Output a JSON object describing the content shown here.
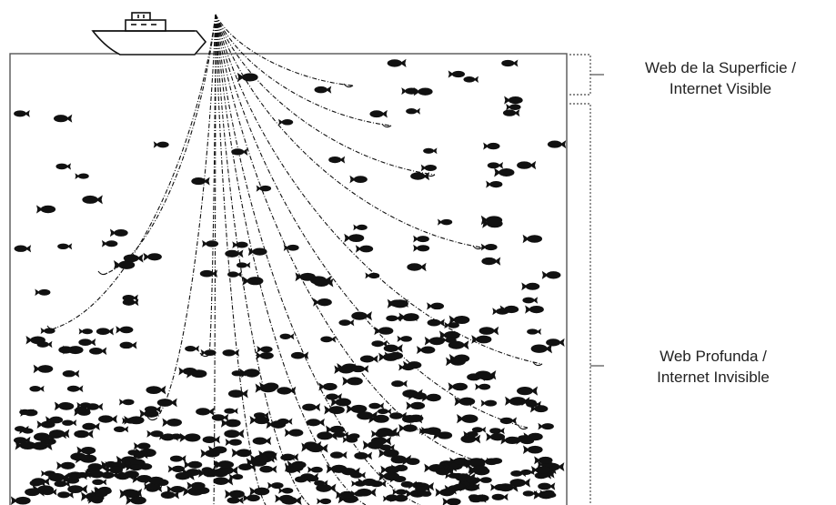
{
  "diagram": {
    "labels": {
      "surface_web": {
        "line1": "Web de la Superficie /",
        "line2": "Internet Visible"
      },
      "deep_web": {
        "line1": "Web Profunda /",
        "line2": "Internet Invisible"
      }
    },
    "colors": {
      "ink": "#111111",
      "frame": "#555555",
      "bracket": "#666666",
      "fish": "#111111",
      "background": "#ffffff"
    },
    "icons": {
      "boat": "fishing-boat-icon",
      "fish": "fish-icon",
      "net_line": "fishing-line"
    }
  }
}
